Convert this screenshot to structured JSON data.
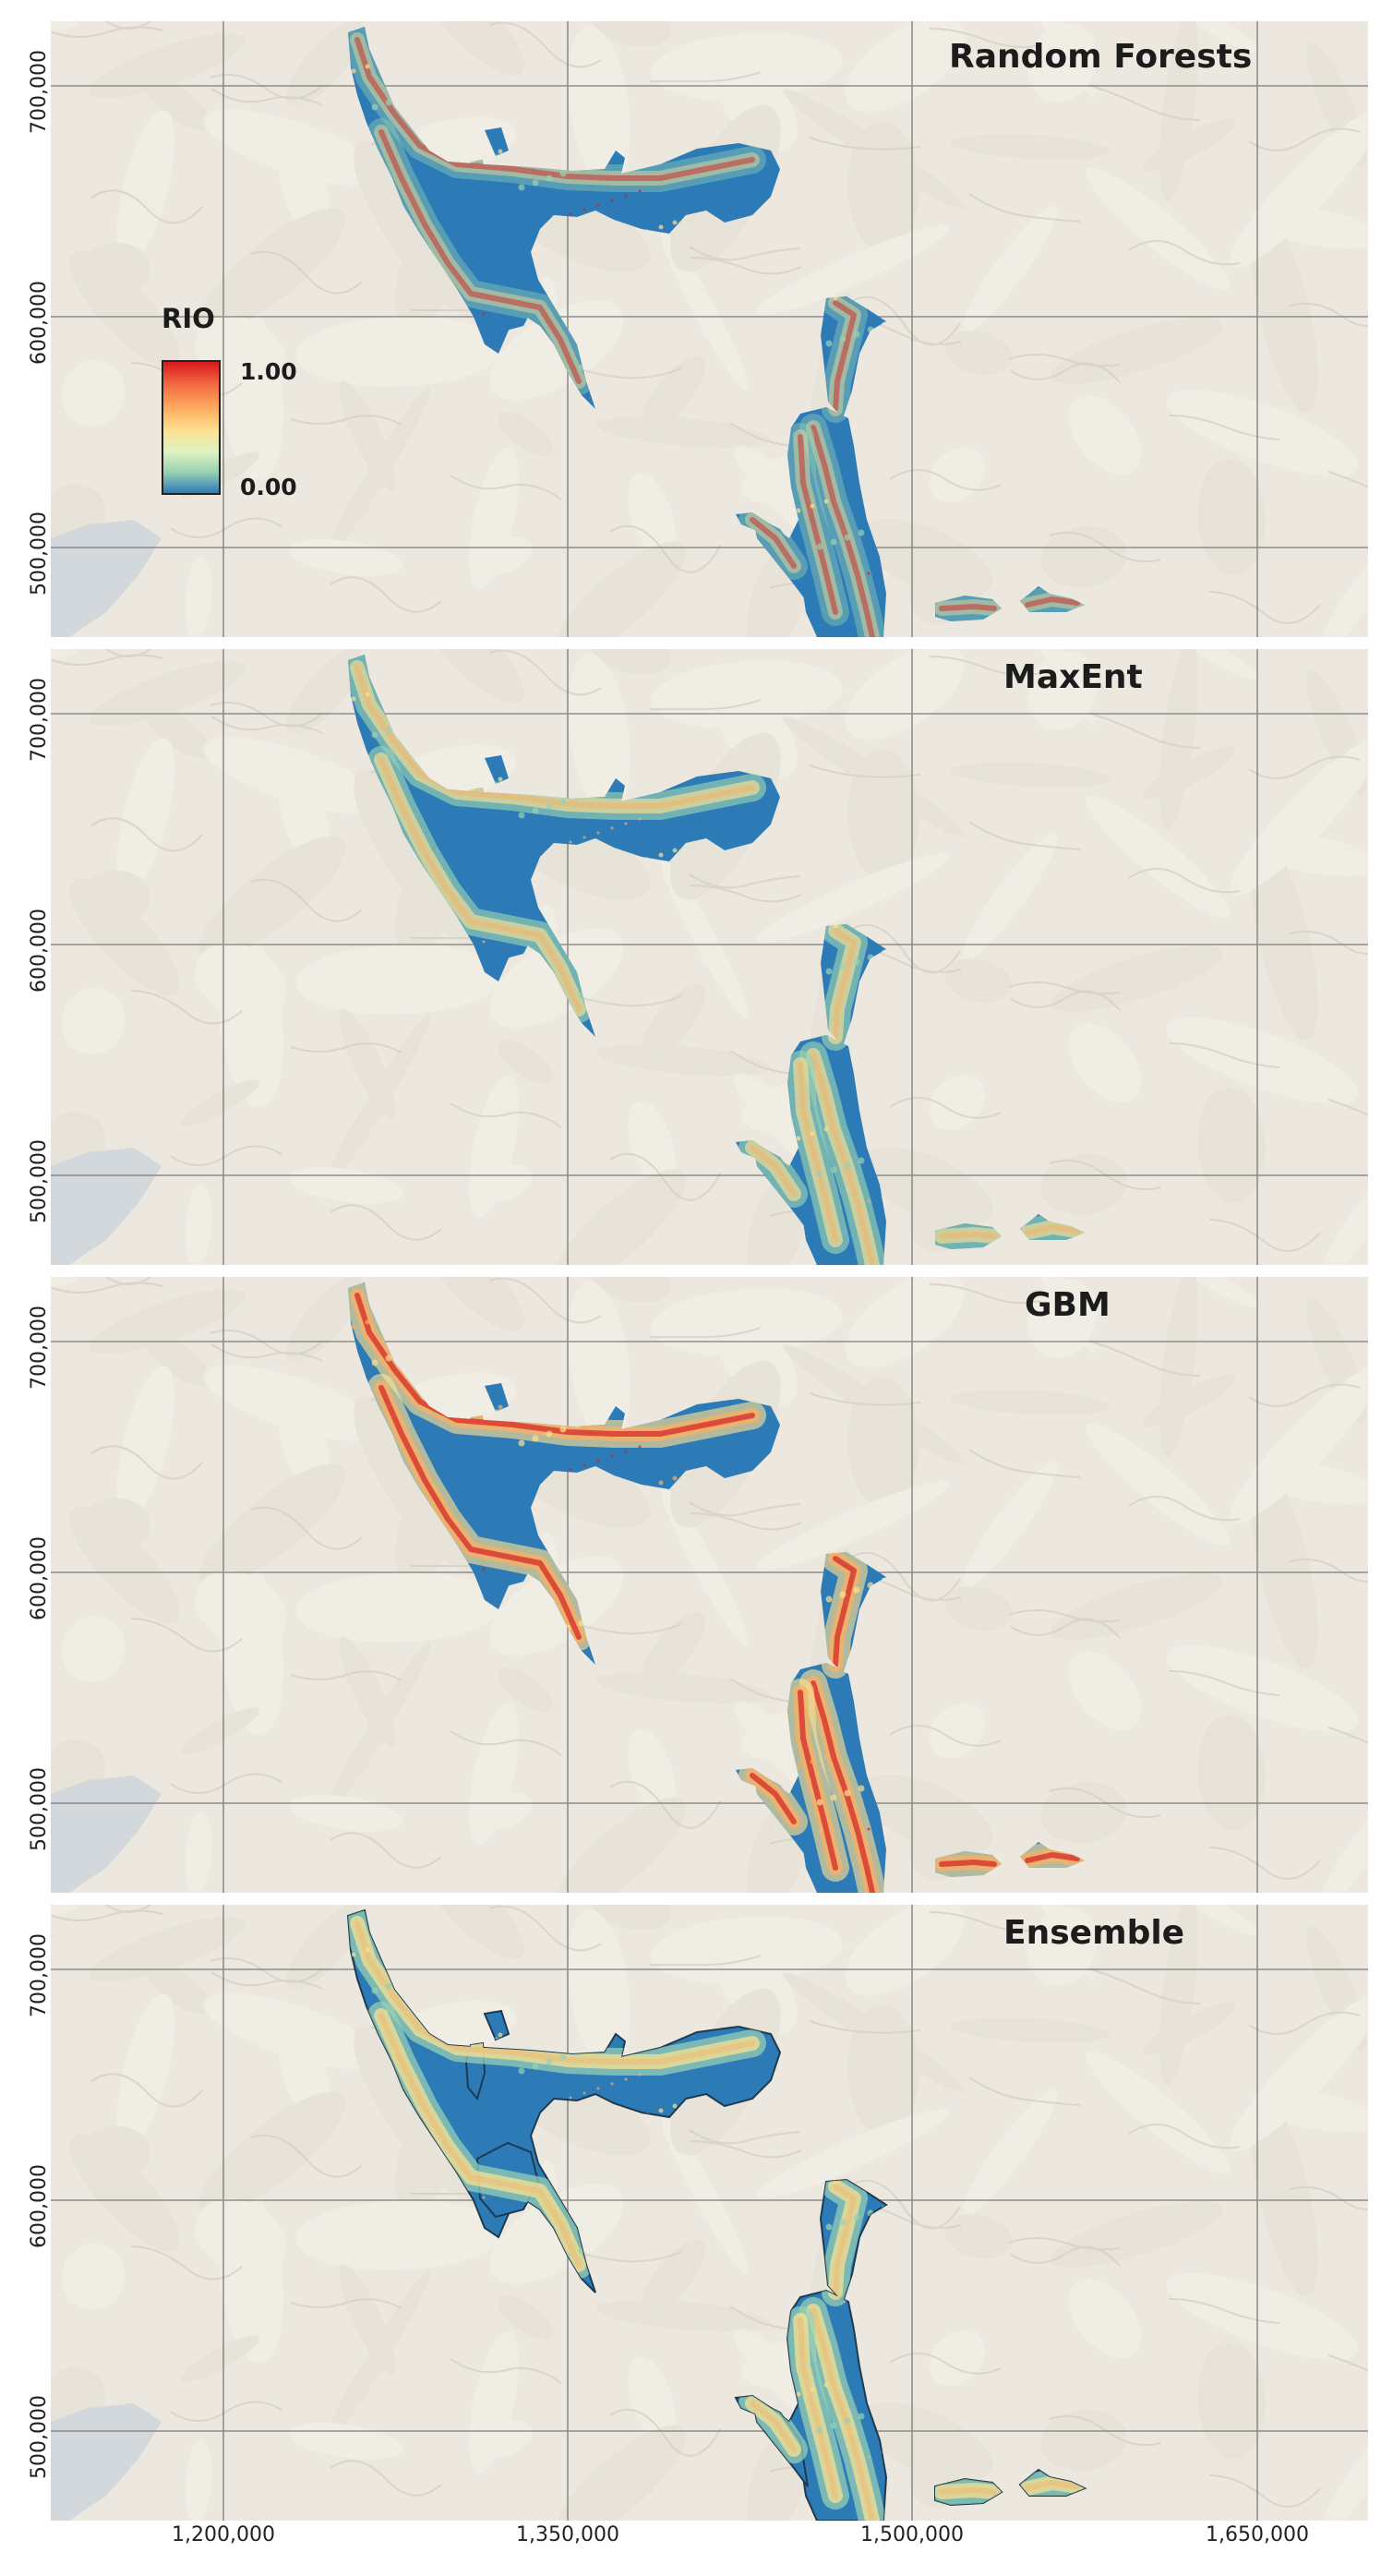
{
  "panels": [
    {
      "title": "Random Forests",
      "variant": "rf"
    },
    {
      "title": "MaxEnt",
      "variant": "maxent"
    },
    {
      "title": "GBM",
      "variant": "gbm"
    },
    {
      "title": "Ensemble",
      "variant": "ensemble"
    }
  ],
  "y_axis_labels": [
    "700,000",
    "600,000",
    "500,000"
  ],
  "x_axis_labels": [
    "1,200,000",
    "1,350,000",
    "1,500,000",
    "1,650,000"
  ],
  "legend": {
    "title": "RIO",
    "max_label": "1.00",
    "min_label": "0.00"
  },
  "colors": {
    "low": "#2c7bb6",
    "mid_low": "#99d1b4",
    "mid": "#fee090",
    "mid_high": "#fdae61",
    "high": "#d7191c",
    "basemap": "#ece8df",
    "grid": "#6f6f6f",
    "water": "#cfd6da"
  }
}
